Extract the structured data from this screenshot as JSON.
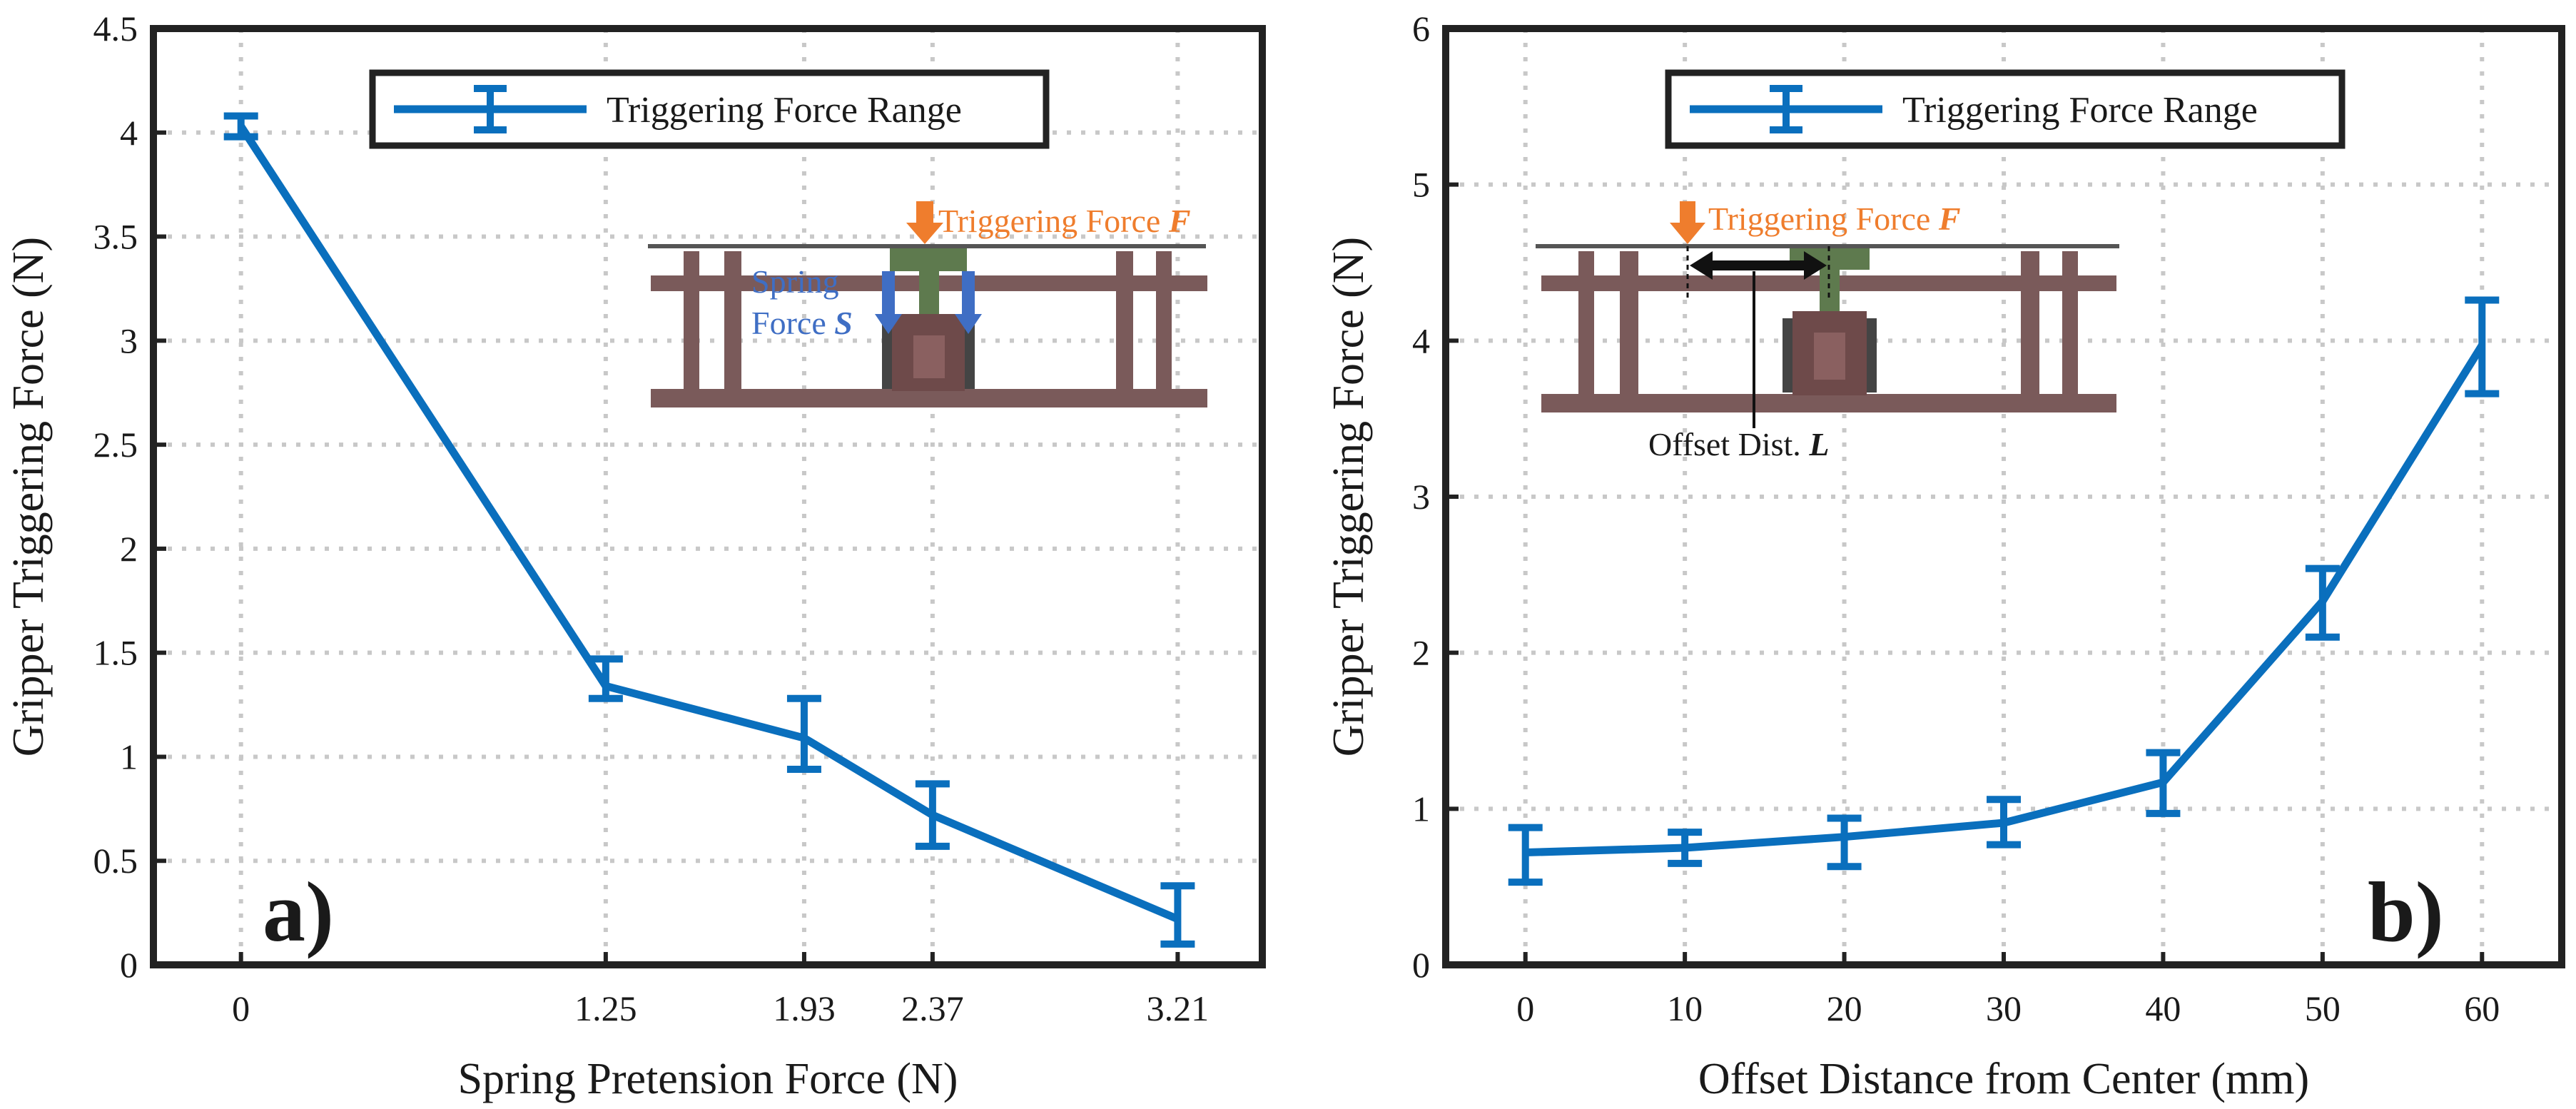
{
  "colors": {
    "series": "#0a6fbd",
    "frame": "#222222",
    "grid": "#c8c8c8",
    "mechanism": "#7a5a5a",
    "plate": "#5e7a4e",
    "trigger_arrow": "#ef7d2d",
    "spring_arrow": "#3f6ec4",
    "offset_arrow": "#111111"
  },
  "chart_data": [
    {
      "id": "a",
      "type": "line",
      "panel_label": "a)",
      "xlabel": "Spring Pretension Force (N)",
      "ylabel": "Gripper Triggering Force (N)",
      "xlim": [
        -0.3,
        3.5
      ],
      "ylim": [
        0,
        4.5
      ],
      "xticks": [
        0,
        1.25,
        1.93,
        2.37,
        3.21
      ],
      "xtick_labels": [
        "0",
        "1.25",
        "1.93",
        "2.37",
        "3.21"
      ],
      "yticks": [
        0,
        0.5,
        1,
        1.5,
        2,
        2.5,
        3,
        3.5,
        4,
        4.5
      ],
      "ytick_labels": [
        "0",
        "0.5",
        "1",
        "1.5",
        "2",
        "2.5",
        "3",
        "3.5",
        "4",
        "4.5"
      ],
      "grid": true,
      "legend": {
        "position": "top-center",
        "entries": [
          "Triggering Force Range"
        ]
      },
      "series": [
        {
          "name": "Triggering Force Range",
          "x": [
            0,
            1.25,
            1.93,
            2.37,
            3.21
          ],
          "y": [
            4.03,
            1.34,
            1.09,
            0.72,
            0.22
          ],
          "err_low": [
            3.98,
            1.28,
            0.94,
            0.57,
            0.1
          ],
          "err_high": [
            4.08,
            1.47,
            1.28,
            0.87,
            0.38
          ]
        }
      ],
      "inset": {
        "trigger_label": "Triggering Force ",
        "trigger_symbol": "F",
        "spring_label_1": "Spring",
        "spring_label_2": "Force ",
        "spring_symbol": "S"
      }
    },
    {
      "id": "b",
      "type": "line",
      "panel_label": "b)",
      "xlabel": "Offset Distance from Center (mm)",
      "ylabel": "Gripper Triggering Force (N)",
      "xlim": [
        -5,
        65
      ],
      "ylim": [
        0,
        6
      ],
      "xticks": [
        0,
        10,
        20,
        30,
        40,
        50,
        60
      ],
      "xtick_labels": [
        "0",
        "10",
        "20",
        "30",
        "40",
        "50",
        "60"
      ],
      "yticks": [
        0,
        1,
        2,
        3,
        4,
        5,
        6
      ],
      "ytick_labels": [
        "0",
        "1",
        "2",
        "3",
        "4",
        "5",
        "6"
      ],
      "grid": true,
      "legend": {
        "position": "top-center",
        "entries": [
          "Triggering Force Range"
        ]
      },
      "series": [
        {
          "name": "Triggering Force Range",
          "x": [
            0,
            10,
            20,
            30,
            40,
            50,
            60
          ],
          "y": [
            0.72,
            0.75,
            0.82,
            0.91,
            1.17,
            2.33,
            3.97
          ],
          "err_low": [
            0.53,
            0.65,
            0.63,
            0.77,
            0.97,
            2.1,
            3.66
          ],
          "err_high": [
            0.88,
            0.85,
            0.94,
            1.06,
            1.36,
            2.54,
            4.26
          ]
        }
      ],
      "inset": {
        "trigger_label": "Triggering Force ",
        "trigger_symbol": "F",
        "offset_label": "Offset Dist. ",
        "offset_symbol": "L"
      }
    }
  ]
}
